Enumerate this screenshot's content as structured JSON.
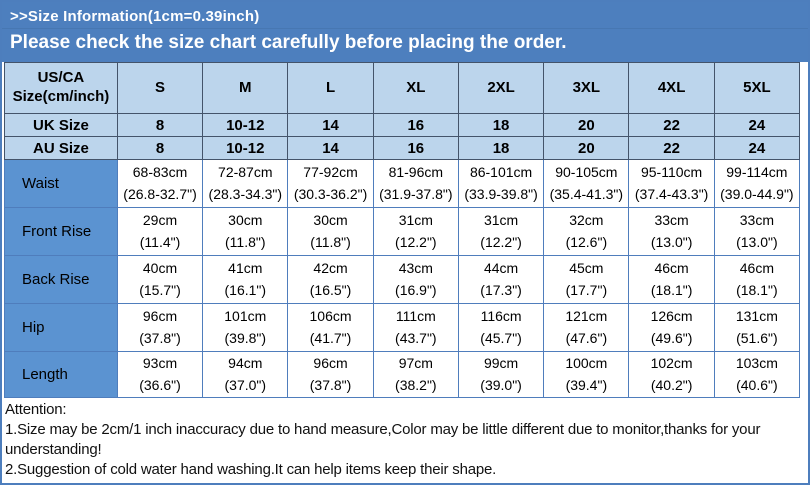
{
  "header": {
    "title": ">>Size Information(1cm=0.39inch)",
    "subtitle": "Please check the size chart carefully before placing the order.",
    "background": "#4d7fbe",
    "text_color": "#ffffff"
  },
  "size_chart": {
    "corner_label": "US/CA Size(cm/inch)",
    "size_headers": [
      "S",
      "M",
      "L",
      "XL",
      "2XL",
      "3XL",
      "4XL",
      "5XL"
    ],
    "region_rows": [
      {
        "label": "UK Size",
        "values": [
          "8",
          "10-12",
          "14",
          "16",
          "18",
          "20",
          "22",
          "24"
        ]
      },
      {
        "label": "AU Size",
        "values": [
          "8",
          "10-12",
          "14",
          "16",
          "18",
          "20",
          "22",
          "24"
        ]
      }
    ],
    "measurement_rows": [
      {
        "label": "Waist",
        "values": [
          {
            "cm": "68-83cm",
            "inch": "(26.8-32.7\")"
          },
          {
            "cm": "72-87cm",
            "inch": "(28.3-34.3\")"
          },
          {
            "cm": "77-92cm",
            "inch": "(30.3-36.2\")"
          },
          {
            "cm": "81-96cm",
            "inch": "(31.9-37.8\")"
          },
          {
            "cm": "86-101cm",
            "inch": "(33.9-39.8\")"
          },
          {
            "cm": "90-105cm",
            "inch": "(35.4-41.3\")"
          },
          {
            "cm": "95-110cm",
            "inch": "(37.4-43.3\")"
          },
          {
            "cm": "99-114cm",
            "inch": "(39.0-44.9\")"
          }
        ]
      },
      {
        "label": "Front Rise",
        "values": [
          {
            "cm": "29cm",
            "inch": "(11.4\")"
          },
          {
            "cm": "30cm",
            "inch": "(11.8\")"
          },
          {
            "cm": "30cm",
            "inch": "(11.8\")"
          },
          {
            "cm": "31cm",
            "inch": "(12.2\")"
          },
          {
            "cm": "31cm",
            "inch": "(12.2\")"
          },
          {
            "cm": "32cm",
            "inch": "(12.6\")"
          },
          {
            "cm": "33cm",
            "inch": "(13.0\")"
          },
          {
            "cm": "33cm",
            "inch": "(13.0\")"
          }
        ]
      },
      {
        "label": "Back Rise",
        "values": [
          {
            "cm": "40cm",
            "inch": "(15.7\")"
          },
          {
            "cm": "41cm",
            "inch": "(16.1\")"
          },
          {
            "cm": "42cm",
            "inch": "(16.5\")"
          },
          {
            "cm": "43cm",
            "inch": "(16.9\")"
          },
          {
            "cm": "44cm",
            "inch": "(17.3\")"
          },
          {
            "cm": "45cm",
            "inch": "(17.7\")"
          },
          {
            "cm": "46cm",
            "inch": "(18.1\")"
          },
          {
            "cm": "46cm",
            "inch": "(18.1\")"
          }
        ]
      },
      {
        "label": "Hip",
        "values": [
          {
            "cm": "96cm",
            "inch": "(37.8\")"
          },
          {
            "cm": "101cm",
            "inch": "(39.8\")"
          },
          {
            "cm": "106cm",
            "inch": "(41.7\")"
          },
          {
            "cm": "111cm",
            "inch": "(43.7\")"
          },
          {
            "cm": "116cm",
            "inch": "(45.7\")"
          },
          {
            "cm": "121cm",
            "inch": "(47.6\")"
          },
          {
            "cm": "126cm",
            "inch": "(49.6\")"
          },
          {
            "cm": "131cm",
            "inch": "(51.6\")"
          }
        ]
      },
      {
        "label": "Length",
        "values": [
          {
            "cm": "93cm",
            "inch": "(36.6\")"
          },
          {
            "cm": "94cm",
            "inch": "(37.0\")"
          },
          {
            "cm": "96cm",
            "inch": "(37.8\")"
          },
          {
            "cm": "97cm",
            "inch": "(38.2\")"
          },
          {
            "cm": "99cm",
            "inch": "(39.0\")"
          },
          {
            "cm": "100cm",
            "inch": "(39.4\")"
          },
          {
            "cm": "102cm",
            "inch": "(40.2\")"
          },
          {
            "cm": "103cm",
            "inch": "(40.6\")"
          }
        ]
      }
    ],
    "colors": {
      "header_bg": "#bcd5ec",
      "label_bg": "#5b93d1",
      "cell_bg": "#ffffff",
      "grid_dark": "#44546a",
      "grid_blue": "#4f7dbc"
    }
  },
  "notes": {
    "heading": "Attention:",
    "items": [
      "1.Size may be 2cm/1 inch inaccuracy due to hand measure,Color may be little different due to monitor,thanks for your understanding!",
      "2.Suggestion of cold water hand washing.It can help items keep their shape."
    ]
  }
}
